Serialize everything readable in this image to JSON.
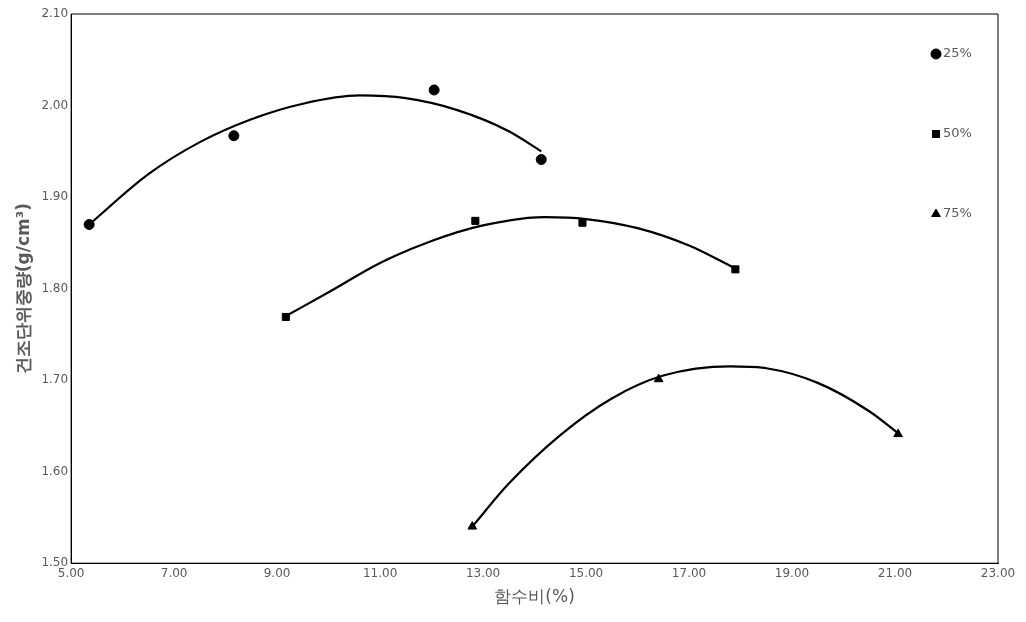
{
  "chart_data": {
    "type": "scatter",
    "xlabel": "함수비(%)",
    "ylabel": "건조단위중량(g/cm³)",
    "xlim": [
      5,
      23
    ],
    "xticks": [
      {
        "value": 5,
        "label": "5.00"
      },
      {
        "value": 7,
        "label": "7.00"
      },
      {
        "value": 9,
        "label": "9.00"
      },
      {
        "value": 11,
        "label": "11.00"
      },
      {
        "value": 13,
        "label": "13.00"
      },
      {
        "value": 15,
        "label": "15.00"
      },
      {
        "value": 17,
        "label": "17.00"
      },
      {
        "value": 19,
        "label": "19.00"
      },
      {
        "value": 21,
        "label": "21.00"
      },
      {
        "value": 23,
        "label": "23.00"
      }
    ],
    "ylim": [
      1.5,
      2.1
    ],
    "yticks": [
      {
        "value": 1.5,
        "label": "1.50"
      },
      {
        "value": 1.6,
        "label": "1.60"
      },
      {
        "value": 1.7,
        "label": "1.70"
      },
      {
        "value": 1.8,
        "label": "1.80"
      },
      {
        "value": 1.9,
        "label": "1.90"
      },
      {
        "value": 2.0,
        "label": "2.00"
      },
      {
        "value": 2.1,
        "label": "2.10"
      }
    ],
    "grid": false,
    "legend": "top right",
    "series": [
      {
        "name": "25%",
        "type": "scatter",
        "marker": "circle",
        "color": "#000000",
        "x": [
          5.35,
          8.16,
          12.05,
          14.13
        ],
        "values": [
          1.87,
          1.967,
          2.017,
          1.941
        ]
      },
      {
        "name": "50%",
        "type": "scatter",
        "marker": "square",
        "color": "#000000",
        "x": [
          9.17,
          12.85,
          14.93,
          17.9
        ],
        "values": [
          1.769,
          1.874,
          1.872,
          1.821
        ]
      },
      {
        "name": "75%",
        "type": "scatter",
        "marker": "triangle",
        "color": "#000000",
        "x": [
          12.79,
          16.41,
          21.06
        ],
        "values": [
          1.54,
          1.701,
          1.641
        ]
      },
      {
        "type": "line",
        "marker": "none",
        "line_style": "solid",
        "color": "#000000",
        "x": [
          5.35,
          6.5,
          7.5,
          8.5,
          9.5,
          10.6,
          11.5,
          12.5,
          13.5,
          14.13
        ],
        "values": [
          1.87,
          1.925,
          1.96,
          1.985,
          2.002,
          2.011,
          2.008,
          1.995,
          1.972,
          1.95
        ]
      },
      {
        "type": "line",
        "marker": "none",
        "line_style": "solid",
        "color": "#000000",
        "x": [
          9.17,
          10,
          11,
          12,
          13,
          14.2,
          15,
          16,
          17,
          17.9
        ],
        "values": [
          1.77,
          1.796,
          1.828,
          1.852,
          1.869,
          1.878,
          1.876,
          1.866,
          1.847,
          1.822
        ]
      },
      {
        "type": "line",
        "marker": "none",
        "line_style": "solid",
        "color": "#000000",
        "x": [
          12.79,
          13.5,
          14.5,
          15.5,
          16.5,
          17.8,
          18.5,
          19.5,
          20.5,
          21.06
        ],
        "values": [
          1.54,
          1.587,
          1.64,
          1.68,
          1.705,
          1.715,
          1.713,
          1.697,
          1.666,
          1.642
        ]
      }
    ]
  }
}
